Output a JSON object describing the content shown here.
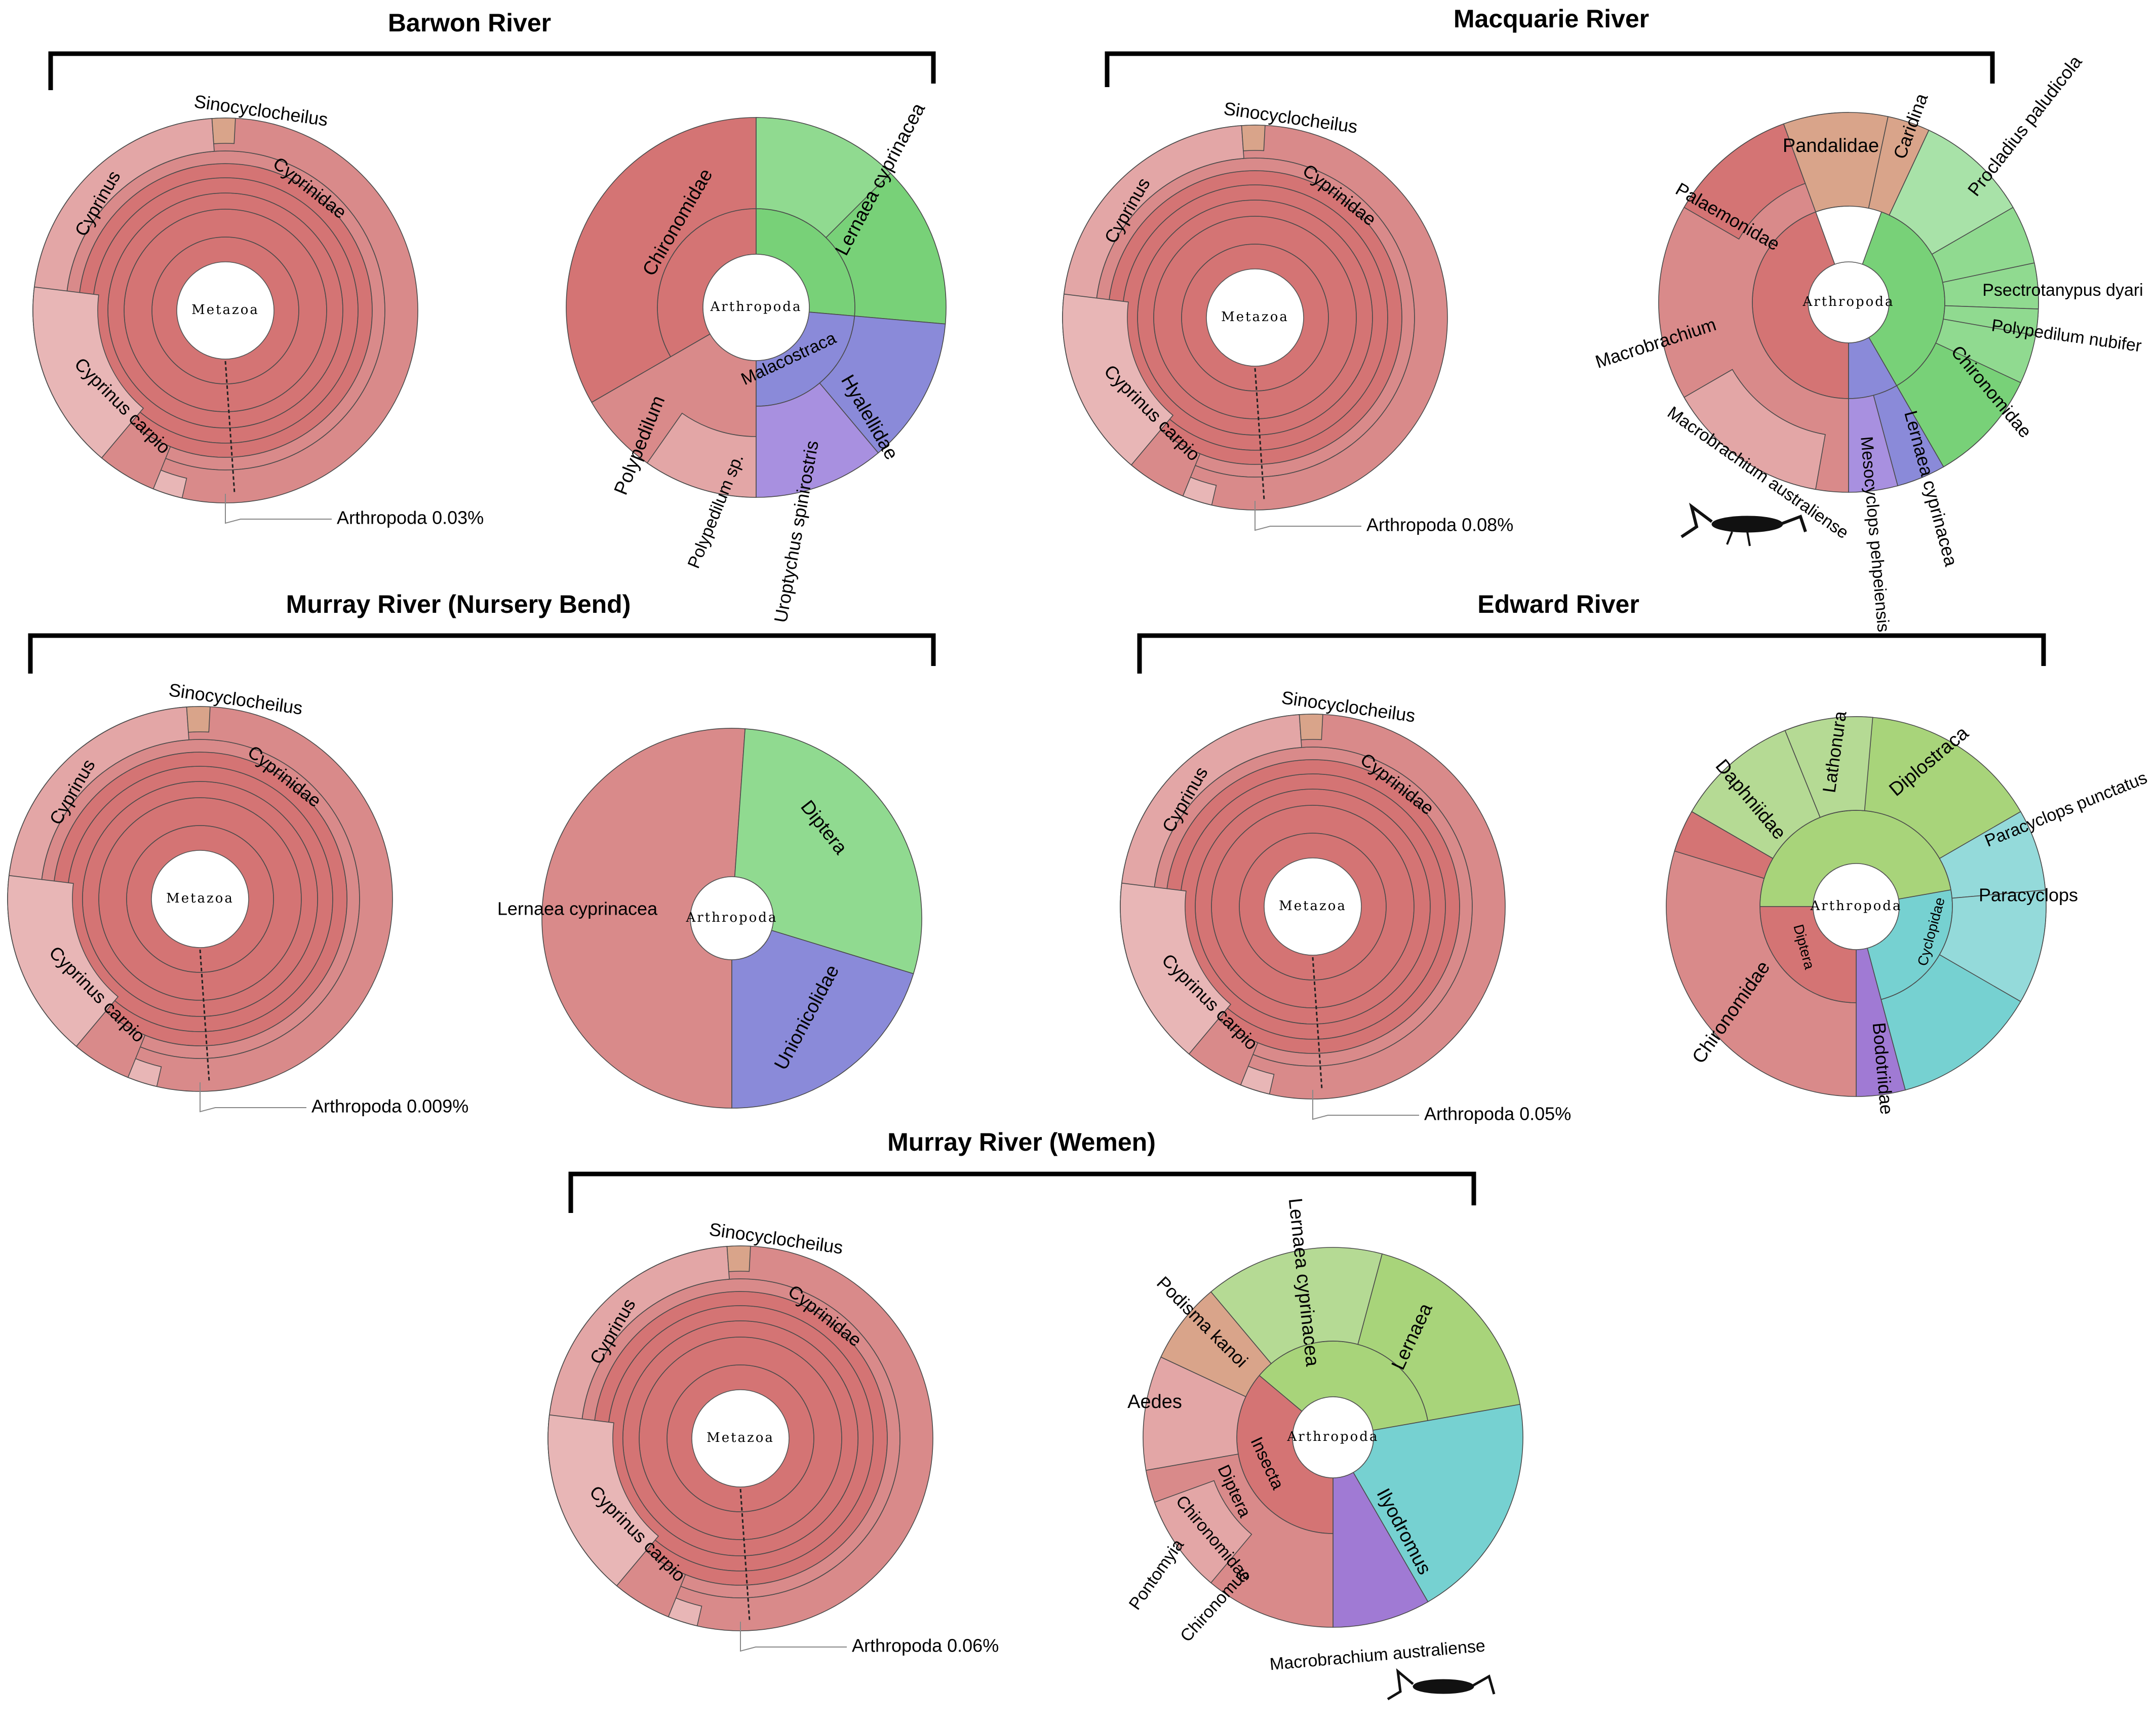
{
  "colors": {
    "red_inner": "#d47474",
    "red_mid": "#d98a8a",
    "red_light": "#e3a6a6",
    "red_pale": "#e8b6b6",
    "tan": "#d9a48a",
    "green": "#78d178",
    "green_light": "#90da90",
    "green_pale": "#a8e2a8",
    "olive": "#a8d47a",
    "olive_light": "#b5da94",
    "blue": "#8a8ad9",
    "purple": "#a07ad4",
    "purple_light": "#a890e0",
    "teal": "#76d1d1",
    "teal_light": "#94dada"
  },
  "panels": [
    {
      "title": "Barwon River",
      "fish": {
        "center": "Metazoa",
        "labels": [
          "Sinocyclocheilus",
          "Cyprinidae",
          "Cyprinus",
          "Cyprinus carpio"
        ],
        "note": "Arthropoda 0.03%"
      },
      "arthro": {
        "center": "Arthropoda",
        "labels": [
          "Lernaea cyprinacea",
          "Chironomidae",
          "Malacostraca",
          "Hyalellidae",
          "Uroptychus spinirostris",
          "Polypedilum",
          "Polypedilum sp."
        ]
      }
    },
    {
      "title": "Macquarie River",
      "fish": {
        "center": "Metazoa",
        "labels": [
          "Sinocyclocheilus",
          "Cyprinidae",
          "Cyprinus",
          "Cyprinus carpio"
        ],
        "note": "Arthropoda 0.08%"
      },
      "arthro": {
        "center": "Arthropoda",
        "labels": [
          "Procladius paludicola",
          "Pandalidae",
          "Caridina",
          "Palaemonidae",
          "Psectrotanypus dyari",
          "Polypedilum nubifer",
          "Chironomidae",
          "Macrobrachium",
          "Lernaea cyprinacea",
          "Mesocyclops pehpeiensis",
          "Macrobrachium australiense"
        ]
      }
    },
    {
      "title": "Murray River (Nursery Bend)",
      "fish": {
        "center": "Metazoa",
        "labels": [
          "Sinocyclocheilus",
          "Cyprinidae",
          "Cyprinus",
          "Cyprinus carpio"
        ],
        "note": "Arthropoda 0.009%"
      },
      "arthro": {
        "center": "Arthropoda",
        "labels": [
          "Diptera",
          "Lernaea cyprinacea",
          "Unionicolidae"
        ]
      }
    },
    {
      "title": "Edward River",
      "fish": {
        "center": "Metazoa",
        "labels": [
          "Sinocyclocheilus",
          "Cyprinidae",
          "Cyprinus",
          "Cyprinus carpio"
        ],
        "note": "Arthropoda 0.05%"
      },
      "arthro": {
        "center": "Arthropoda",
        "labels": [
          "Lathonura",
          "Diplostraca",
          "Daphniidae",
          "Paracyclops punctatus",
          "Paracyclops",
          "Cyclopidae",
          "Diptera",
          "Chironomidae",
          "Bodotriidae"
        ]
      }
    },
    {
      "title": "Murray River (Wemen)",
      "fish": {
        "center": "Metazoa",
        "labels": [
          "Sinocyclocheilus",
          "Cyprinidae",
          "Cyprinus",
          "Cyprinus carpio"
        ],
        "note": "Arthropoda 0.06%"
      },
      "arthro": {
        "center": "Arthropoda",
        "labels": [
          "Lernaea cyprinacea",
          "Podisma kanoi",
          "Lernaea",
          "Aedes",
          "Insecta",
          "Diptera",
          "Chironomidae",
          "Ilyodromus",
          "Pontomyia",
          "Chironomus",
          "Macrobrachium australiense"
        ]
      }
    }
  ]
}
